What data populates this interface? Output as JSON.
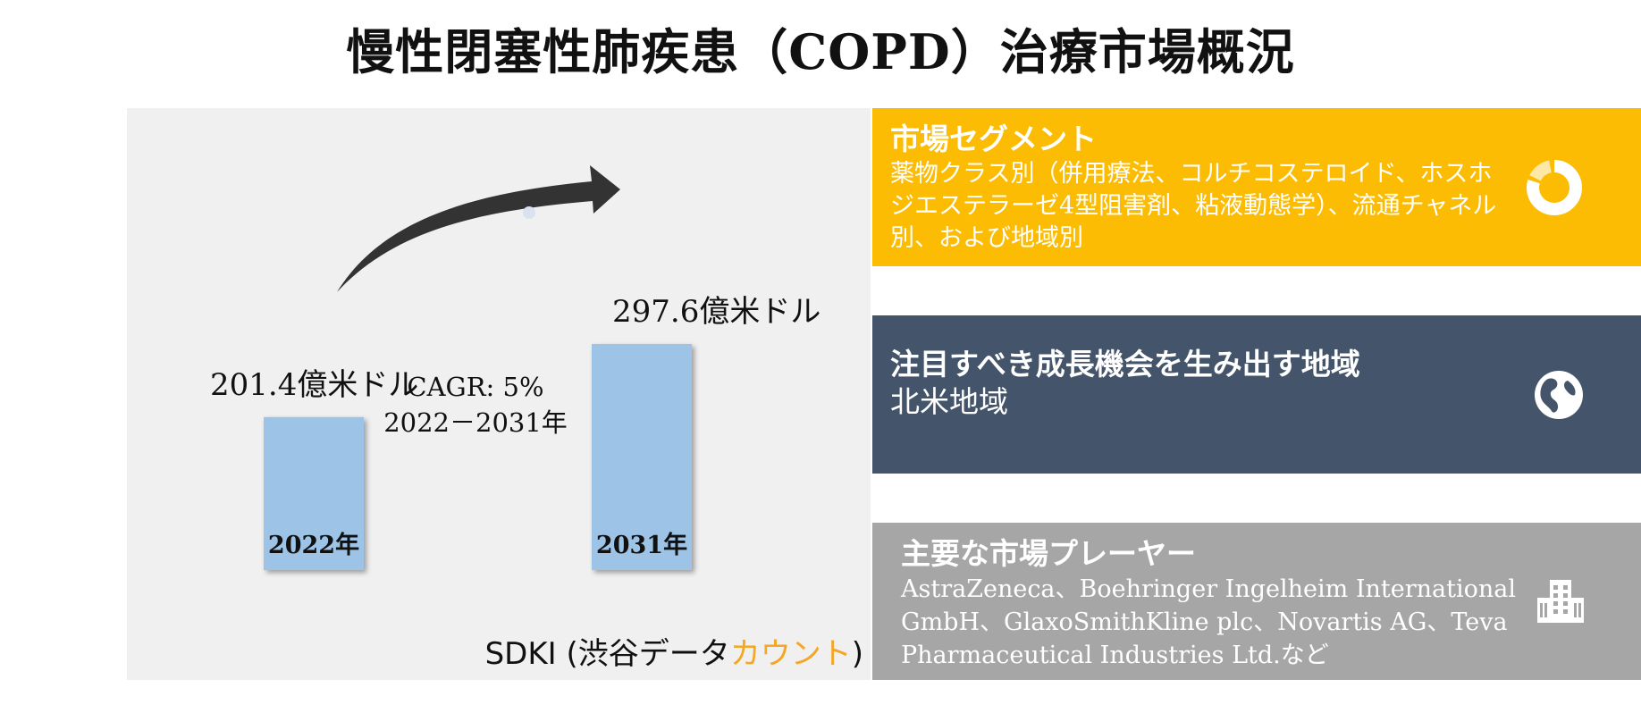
{
  "title": "慢性閉塞性肺疾患（COPD）治療市場概況",
  "chart_data": {
    "type": "bar",
    "categories": [
      "2022年",
      "2031年"
    ],
    "values": [
      201.4,
      297.6
    ],
    "value_labels": [
      "201.4億米ドル",
      "297.6億米ドル"
    ],
    "unit": "億米ドル",
    "color": "#9dc3e6"
  },
  "cagr": {
    "line1": "CAGR: 5%",
    "line2": "2022－2031年"
  },
  "source": {
    "prefix": "SDKI (渋谷データ",
    "accent": "カウント",
    "suffix": ")",
    "accent_color": "#f5a623"
  },
  "cards": {
    "segments": {
      "title": "市場セグメント",
      "body": "薬物クラス別（併用療法、コルチコステロイド、ホスホジエステラーゼ4型阻害剤、粘液動態学）、流通チャネル別、および地域別",
      "color": "#fcbc03",
      "icon": "donut-chart-icon"
    },
    "region": {
      "title": "注目すべき成長機会を生み出す地域",
      "body": "北米地域",
      "color": "#44546a",
      "icon": "globe-icon"
    },
    "players": {
      "title": "主要な市場プレーヤー",
      "body": "AstraZeneca、Boehringer Ingelheim International GmbH、GlaxoSmithKline plc、Novartis AG、Teva Pharmaceutical Industries Ltd.など",
      "color": "#a6a6a6",
      "icon": "building-icon"
    }
  }
}
